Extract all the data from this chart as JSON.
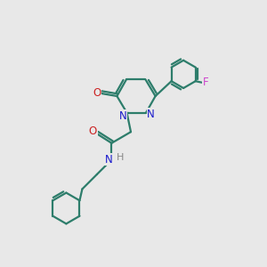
{
  "bg_color": "#e8e8e8",
  "bond_color": "#2d7d6b",
  "N_color": "#1a1acc",
  "O_color": "#cc2222",
  "F_color": "#cc44cc",
  "H_color": "#888888",
  "bond_width": 1.6,
  "figsize": [
    3.0,
    3.0
  ],
  "dpi": 100,
  "xlim": [
    0,
    10
  ],
  "ylim": [
    0,
    10
  ]
}
